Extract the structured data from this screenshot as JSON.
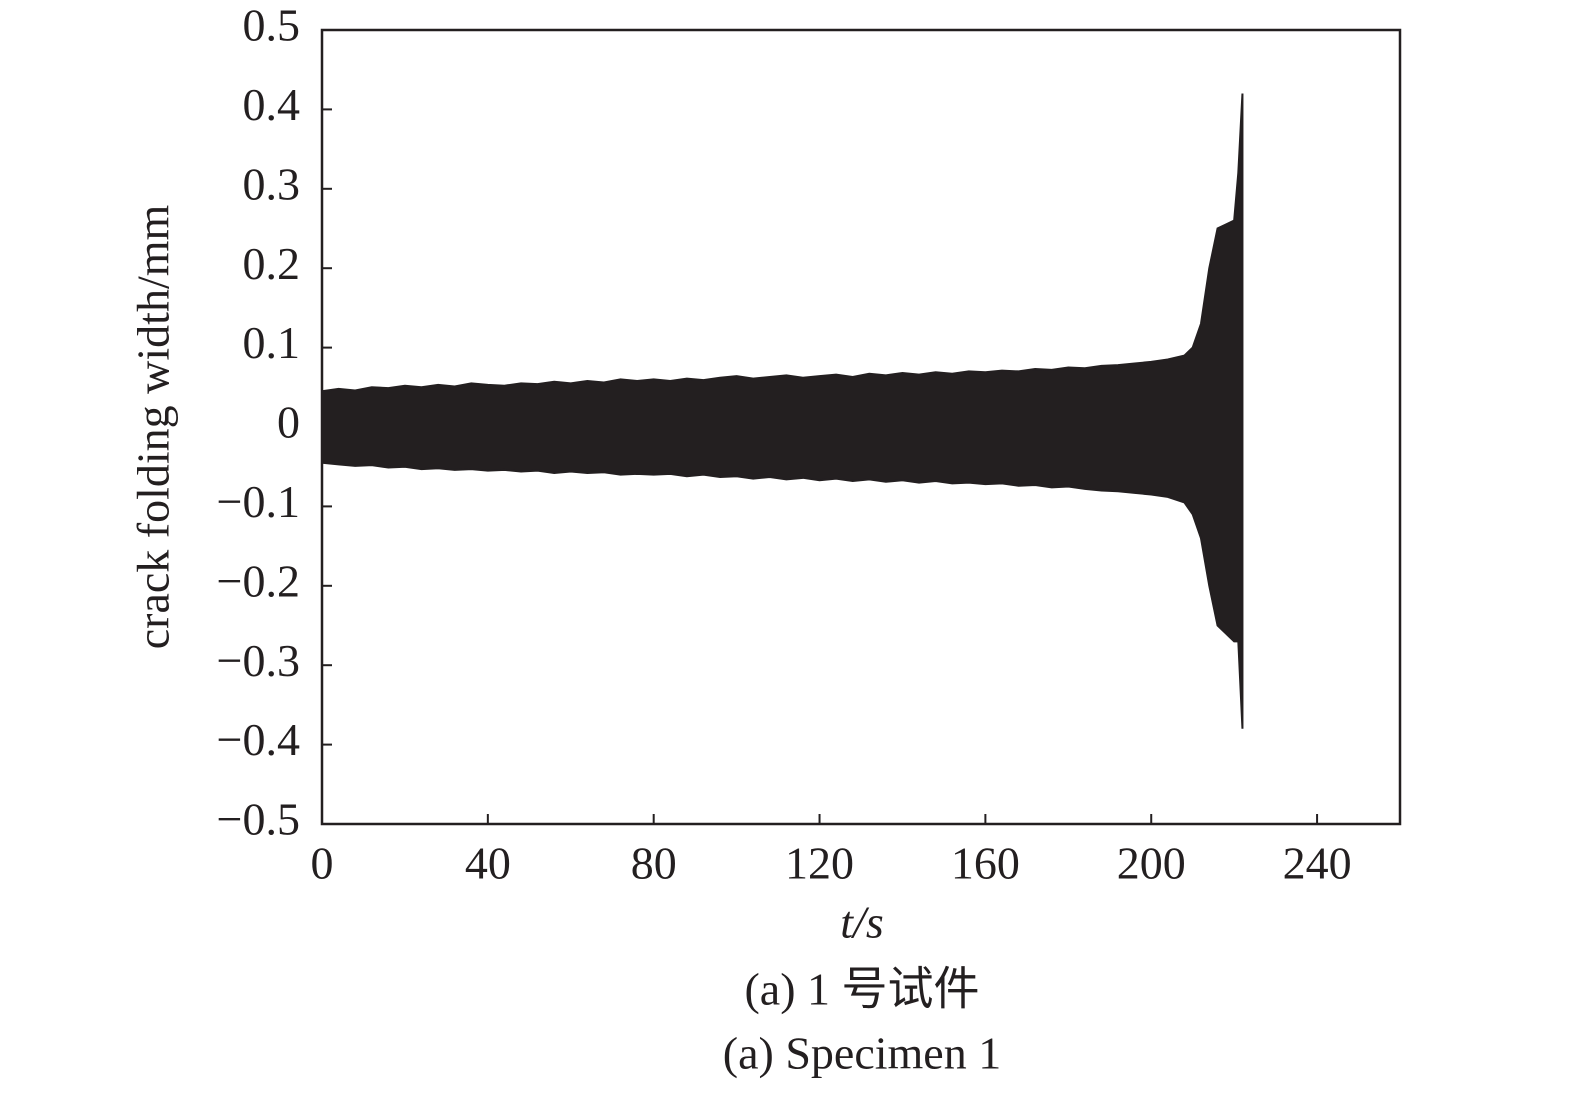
{
  "chart_data": {
    "type": "area",
    "x_label": "t/s",
    "y_label": "crack folding width/mm",
    "captions": [
      "(a) 1 号试件",
      "(a) Specimen 1"
    ],
    "x": [
      0,
      4,
      8,
      12,
      16,
      20,
      24,
      28,
      32,
      36,
      40,
      44,
      48,
      52,
      56,
      60,
      64,
      68,
      72,
      76,
      80,
      84,
      88,
      92,
      96,
      100,
      104,
      108,
      112,
      116,
      120,
      124,
      128,
      132,
      136,
      140,
      144,
      148,
      152,
      156,
      160,
      164,
      168,
      172,
      176,
      180,
      184,
      188,
      192,
      196,
      200,
      204,
      208,
      210,
      212,
      214,
      216,
      218,
      220,
      221,
      222
    ],
    "series": [
      {
        "color": "#231f20",
        "values": [
          0.045,
          0.048,
          0.046,
          0.05,
          0.049,
          0.052,
          0.05,
          0.053,
          0.051,
          0.055,
          0.053,
          0.052,
          0.055,
          0.054,
          0.057,
          0.055,
          0.058,
          0.056,
          0.06,
          0.058,
          0.06,
          0.058,
          0.061,
          0.059,
          0.062,
          0.064,
          0.061,
          0.063,
          0.065,
          0.062,
          0.064,
          0.066,
          0.063,
          0.067,
          0.065,
          0.068,
          0.066,
          0.069,
          0.067,
          0.07,
          0.069,
          0.071,
          0.07,
          0.073,
          0.072,
          0.075,
          0.074,
          0.077,
          0.078,
          0.08,
          0.082,
          0.085,
          0.09,
          0.1,
          0.13,
          0.2,
          0.25,
          0.255,
          0.26,
          0.32,
          0.42
        ]
      },
      {
        "color": "#231f20",
        "values": [
          -0.045,
          -0.047,
          -0.049,
          -0.048,
          -0.051,
          -0.05,
          -0.053,
          -0.052,
          -0.054,
          -0.053,
          -0.055,
          -0.054,
          -0.056,
          -0.055,
          -0.058,
          -0.056,
          -0.058,
          -0.057,
          -0.06,
          -0.059,
          -0.06,
          -0.059,
          -0.062,
          -0.06,
          -0.063,
          -0.062,
          -0.065,
          -0.063,
          -0.066,
          -0.064,
          -0.067,
          -0.065,
          -0.068,
          -0.066,
          -0.069,
          -0.067,
          -0.07,
          -0.068,
          -0.071,
          -0.07,
          -0.072,
          -0.071,
          -0.074,
          -0.073,
          -0.076,
          -0.075,
          -0.078,
          -0.08,
          -0.081,
          -0.083,
          -0.085,
          -0.088,
          -0.095,
          -0.11,
          -0.14,
          -0.2,
          -0.25,
          -0.26,
          -0.27,
          -0.27,
          -0.38
        ]
      }
    ],
    "xlim": [
      0,
      260
    ],
    "ylim": [
      -0.5,
      0.5
    ],
    "xticks": [
      0,
      40,
      80,
      120,
      160,
      200,
      240
    ],
    "yticks": [
      {
        "value": -0.5,
        "label": "−0.5"
      },
      {
        "value": -0.4,
        "label": "−0.4"
      },
      {
        "value": -0.3,
        "label": "−0.3"
      },
      {
        "value": -0.2,
        "label": "−0.2"
      },
      {
        "value": -0.1,
        "label": "−0.1"
      },
      0,
      0.1,
      0.2,
      0.3,
      0.4,
      0.5
    ],
    "grid": false
  }
}
